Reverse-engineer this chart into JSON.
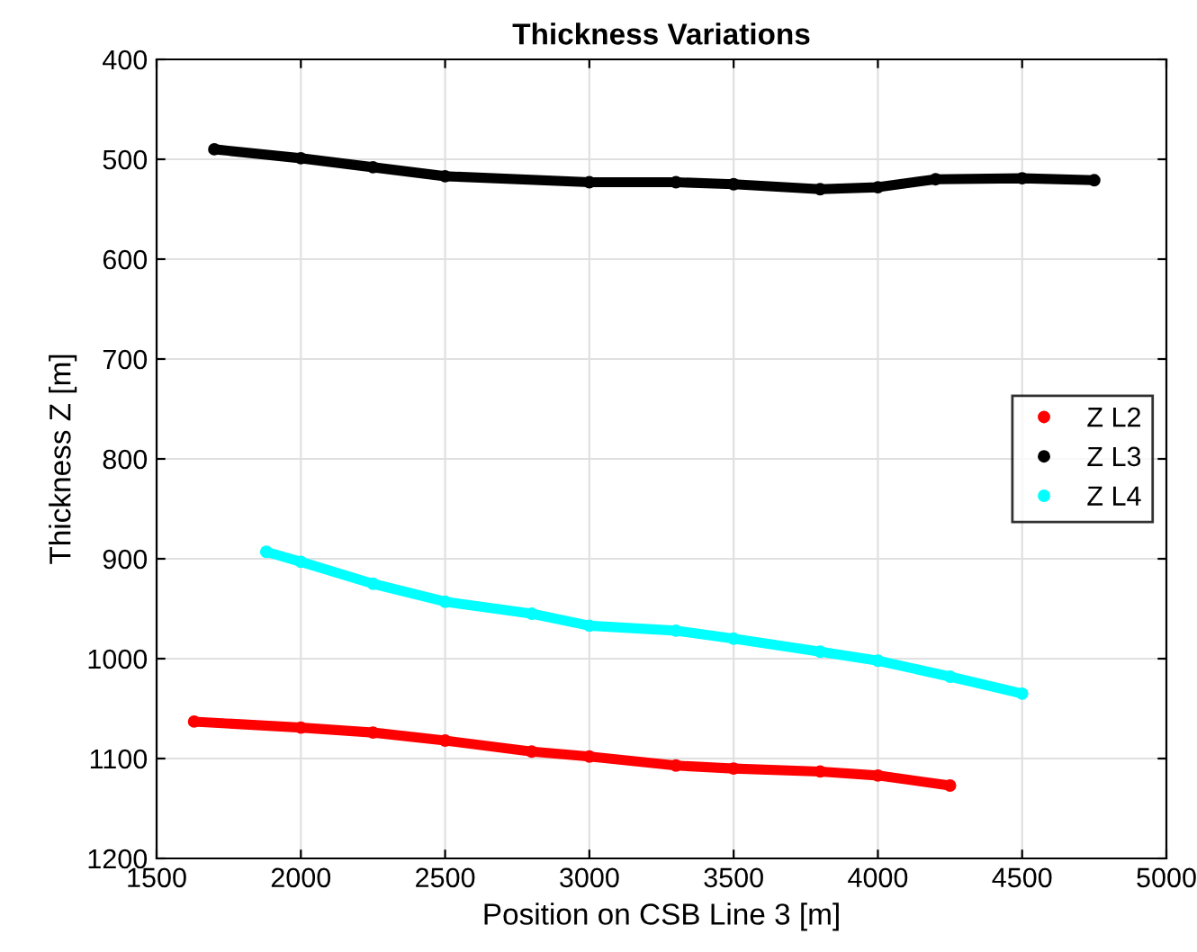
{
  "chart_data": {
    "type": "line",
    "title": "Thickness Variations",
    "xlabel": "Position on CSB Line 3 [m]",
    "ylabel": "Thickness Z [m]",
    "series": [
      {
        "name": "Z L2",
        "color": "#ff0000",
        "x": [
          1630,
          2000,
          2250,
          2500,
          2800,
          3000,
          3300,
          3500,
          3800,
          4000,
          4250
        ],
        "values": [
          1063,
          1069,
          1074,
          1082,
          1093,
          1098,
          1107,
          1110,
          1113,
          1117,
          1127
        ]
      },
      {
        "name": "Z L3",
        "color": "#000000",
        "x": [
          1700,
          2000,
          2250,
          2500,
          3000,
          3300,
          3500,
          3800,
          4000,
          4200,
          4500,
          4750
        ],
        "values": [
          490,
          499,
          508,
          517,
          523,
          523,
          525,
          530,
          528,
          520,
          519,
          521
        ]
      },
      {
        "name": "Z L4",
        "color": "#00ffff",
        "x": [
          1880,
          2000,
          2250,
          2500,
          2800,
          3000,
          3300,
          3500,
          3800,
          4000,
          4250,
          4500
        ],
        "values": [
          893,
          903,
          925,
          943,
          955,
          967,
          972,
          980,
          993,
          1002,
          1018,
          1035
        ]
      }
    ],
    "xlim": [
      1500,
      5000
    ],
    "xticks": [
      1500,
      2000,
      2500,
      3000,
      3500,
      4000,
      4500,
      5000
    ],
    "ylim": [
      1200,
      400
    ],
    "yticks": [
      400,
      500,
      600,
      700,
      800,
      900,
      1000,
      1100,
      1200
    ],
    "grid": true,
    "legend": "right",
    "marker": "circle"
  }
}
